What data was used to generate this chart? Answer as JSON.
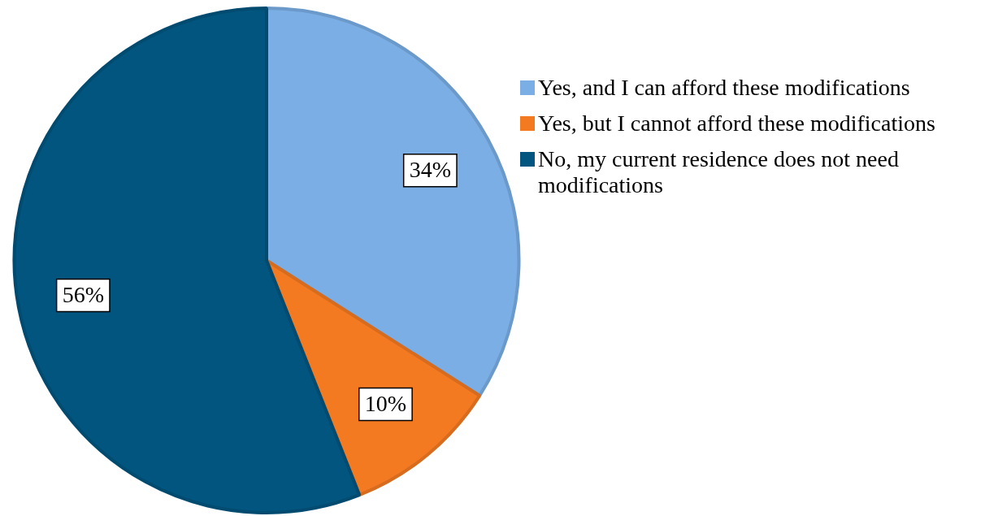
{
  "chart_data": {
    "type": "pie",
    "categories": [
      "Yes, and I can afford these modifications",
      "Yes, but I cannot afford these modifications",
      "No, my current residence does not need modifications"
    ],
    "values": [
      34,
      10,
      56
    ],
    "value_labels": [
      "34%",
      "10%",
      "56%"
    ],
    "colors": [
      "#7aaee4",
      "#f47a22",
      "#02557f"
    ],
    "legend": "right"
  }
}
